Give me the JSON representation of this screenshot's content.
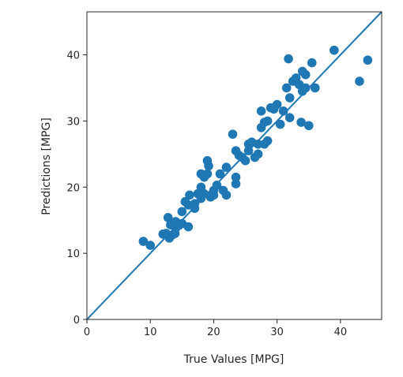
{
  "chart_data": {
    "type": "scatter",
    "title": "",
    "xlabel": "True Values [MPG]",
    "ylabel": "Predictions [MPG]",
    "xlim": [
      0,
      46.5
    ],
    "ylim": [
      0,
      46.5
    ],
    "x_ticks": [
      0,
      10,
      20,
      30,
      40
    ],
    "y_ticks": [
      0,
      10,
      20,
      30,
      40
    ],
    "grid": false,
    "colors": {
      "points": "#1f77b4",
      "line": "#1f77b4",
      "axes": "#262626"
    },
    "reference_line": {
      "x": [
        0,
        46.5
      ],
      "y": [
        0,
        46.5
      ]
    },
    "points": [
      [
        8.9,
        11.8
      ],
      [
        10.0,
        11.2
      ],
      [
        12.0,
        12.9
      ],
      [
        12.5,
        13.0
      ],
      [
        12.8,
        15.4
      ],
      [
        13.0,
        12.3
      ],
      [
        13.2,
        14.3
      ],
      [
        13.5,
        12.8
      ],
      [
        13.9,
        13.0
      ],
      [
        14.0,
        14.8
      ],
      [
        14.0,
        13.8
      ],
      [
        14.5,
        14.2
      ],
      [
        15.0,
        16.3
      ],
      [
        15.0,
        14.5
      ],
      [
        15.5,
        17.8
      ],
      [
        16.0,
        14.0
      ],
      [
        16.0,
        17.3
      ],
      [
        16.2,
        18.8
      ],
      [
        17.0,
        17.5
      ],
      [
        17.0,
        16.8
      ],
      [
        17.5,
        19.0
      ],
      [
        18.0,
        18.3
      ],
      [
        18.0,
        20.0
      ],
      [
        18.0,
        22.0
      ],
      [
        18.5,
        21.5
      ],
      [
        18.5,
        19.0
      ],
      [
        19.0,
        22.0
      ],
      [
        19.0,
        24.0
      ],
      [
        19.2,
        23.2
      ],
      [
        19.5,
        18.5
      ],
      [
        20.0,
        19.5
      ],
      [
        20.0,
        18.8
      ],
      [
        20.5,
        20.3
      ],
      [
        21.0,
        22.0
      ],
      [
        21.5,
        19.5
      ],
      [
        22.0,
        23.0
      ],
      [
        22.0,
        18.8
      ],
      [
        23.0,
        28.0
      ],
      [
        23.5,
        20.5
      ],
      [
        23.5,
        21.5
      ],
      [
        23.5,
        25.5
      ],
      [
        24.0,
        24.8
      ],
      [
        24.5,
        24.5
      ],
      [
        25.0,
        24.0
      ],
      [
        25.5,
        25.5
      ],
      [
        25.5,
        26.5
      ],
      [
        26.0,
        26.8
      ],
      [
        26.5,
        24.5
      ],
      [
        27.0,
        25.0
      ],
      [
        27.0,
        26.5
      ],
      [
        27.5,
        31.5
      ],
      [
        27.5,
        29.0
      ],
      [
        28.0,
        26.5
      ],
      [
        28.0,
        29.8
      ],
      [
        28.5,
        27.0
      ],
      [
        28.5,
        30.0
      ],
      [
        29.0,
        32.0
      ],
      [
        29.5,
        31.8
      ],
      [
        30.0,
        32.5
      ],
      [
        30.5,
        29.5
      ],
      [
        31.0,
        31.5
      ],
      [
        31.5,
        35.0
      ],
      [
        31.8,
        39.4
      ],
      [
        32.0,
        33.5
      ],
      [
        32.0,
        30.5
      ],
      [
        32.5,
        36.0
      ],
      [
        33.0,
        36.5
      ],
      [
        33.5,
        35.5
      ],
      [
        33.8,
        29.8
      ],
      [
        34.0,
        37.5
      ],
      [
        34.0,
        34.5
      ],
      [
        34.5,
        37.0
      ],
      [
        34.5,
        35.0
      ],
      [
        35.0,
        29.3
      ],
      [
        35.5,
        38.8
      ],
      [
        36.0,
        35.0
      ],
      [
        39.0,
        40.7
      ],
      [
        43.0,
        36.0
      ],
      [
        44.3,
        39.2
      ]
    ]
  }
}
